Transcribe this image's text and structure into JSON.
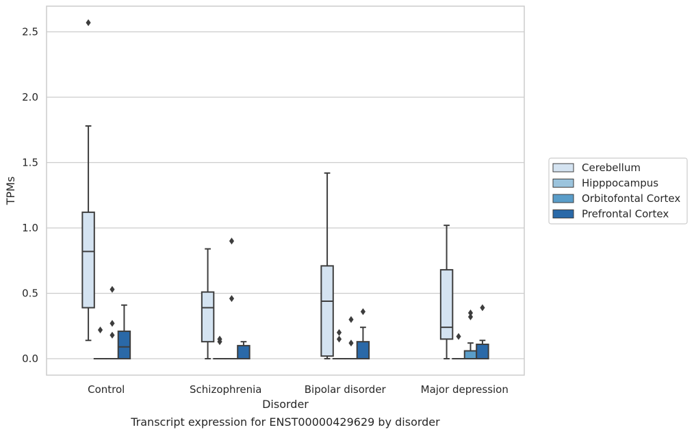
{
  "chart_data": {
    "type": "box",
    "title": "Transcript expression for ENST00000429629 by disorder",
    "xlabel": "Disorder",
    "ylabel": "TPMs",
    "ylim": [
      -0.12,
      2.71
    ],
    "yticks": [
      0.0,
      0.5,
      1.0,
      1.5,
      2.0,
      2.5
    ],
    "ytick_labels": [
      "0.0",
      "0.5",
      "1.0",
      "1.5",
      "2.0",
      "2.5"
    ],
    "grid": "horizontal",
    "legend_position": "right",
    "categories": [
      "Control",
      "Schizophrenia",
      "Bipolar disorder",
      "Major depression"
    ],
    "series": [
      {
        "name": "Cerebellum",
        "color": "#d4e3f1",
        "boxes": [
          {
            "whisker_low": 0.14,
            "q1": 0.39,
            "median": 0.82,
            "q3": 1.12,
            "whisker_high": 1.78,
            "outliers": [
              2.57
            ]
          },
          {
            "whisker_low": 0.0,
            "q1": 0.13,
            "median": 0.39,
            "q3": 0.51,
            "whisker_high": 0.84,
            "outliers": []
          },
          {
            "whisker_low": 0.0,
            "q1": 0.02,
            "median": 0.44,
            "q3": 0.71,
            "whisker_high": 1.42,
            "outliers": []
          },
          {
            "whisker_low": 0.0,
            "q1": 0.15,
            "median": 0.24,
            "q3": 0.68,
            "whisker_high": 1.02,
            "outliers": []
          }
        ]
      },
      {
        "name": "Hipppocampus",
        "color": "#9cc4dd",
        "boxes": [
          {
            "whisker_low": 0.0,
            "q1": 0.0,
            "median": 0.0,
            "q3": 0.0,
            "whisker_high": 0.0,
            "outliers": [
              0.22
            ]
          },
          {
            "whisker_low": 0.0,
            "q1": 0.0,
            "median": 0.0,
            "q3": 0.0,
            "whisker_high": 0.0,
            "outliers": [
              0.13,
              0.15
            ]
          },
          {
            "whisker_low": 0.0,
            "q1": 0.0,
            "median": 0.0,
            "q3": 0.0,
            "whisker_high": 0.0,
            "outliers": [
              0.15,
              0.2
            ]
          },
          {
            "whisker_low": 0.0,
            "q1": 0.0,
            "median": 0.0,
            "q3": 0.0,
            "whisker_high": 0.0,
            "outliers": [
              0.17
            ]
          }
        ]
      },
      {
        "name": "Orbitofontal Cortex",
        "color": "#5a9dc9",
        "boxes": [
          {
            "whisker_low": 0.0,
            "q1": 0.0,
            "median": 0.0,
            "q3": 0.0,
            "whisker_high": 0.0,
            "outliers": [
              0.18,
              0.27,
              0.53
            ]
          },
          {
            "whisker_low": 0.0,
            "q1": 0.0,
            "median": 0.0,
            "q3": 0.0,
            "whisker_high": 0.0,
            "outliers": [
              0.46,
              0.9
            ]
          },
          {
            "whisker_low": 0.0,
            "q1": 0.0,
            "median": 0.0,
            "q3": 0.0,
            "whisker_high": 0.0,
            "outliers": [
              0.12,
              0.3
            ]
          },
          {
            "whisker_low": 0.0,
            "q1": 0.0,
            "median": 0.0,
            "q3": 0.06,
            "whisker_high": 0.12,
            "outliers": [
              0.32,
              0.35
            ]
          }
        ]
      },
      {
        "name": "Prefrontal Cortex",
        "color": "#2a69a8",
        "boxes": [
          {
            "whisker_low": 0.0,
            "q1": 0.0,
            "median": 0.09,
            "q3": 0.21,
            "whisker_high": 0.41,
            "outliers": []
          },
          {
            "whisker_low": 0.0,
            "q1": 0.0,
            "median": 0.0,
            "q3": 0.1,
            "whisker_high": 0.13,
            "outliers": []
          },
          {
            "whisker_low": 0.0,
            "q1": 0.0,
            "median": 0.0,
            "q3": 0.13,
            "whisker_high": 0.24,
            "outliers": [
              0.36
            ]
          },
          {
            "whisker_low": 0.0,
            "q1": 0.0,
            "median": 0.0,
            "q3": 0.11,
            "whisker_high": 0.14,
            "outliers": [
              0.39
            ]
          }
        ]
      }
    ]
  }
}
